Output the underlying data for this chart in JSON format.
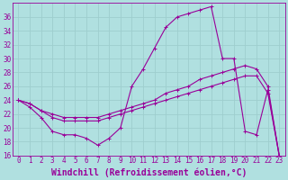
{
  "xlabel": "Windchill (Refroidissement éolien,°C)",
  "bg_color": "#b0e0e0",
  "line_color": "#990099",
  "grid_color": "#9ecece",
  "xlim": [
    -0.5,
    23.5
  ],
  "ylim": [
    16,
    38
  ],
  "yticks": [
    16,
    18,
    20,
    22,
    24,
    26,
    28,
    30,
    32,
    34,
    36
  ],
  "xticks": [
    0,
    1,
    2,
    3,
    4,
    5,
    6,
    7,
    8,
    9,
    10,
    11,
    12,
    13,
    14,
    15,
    16,
    17,
    18,
    19,
    20,
    21,
    22,
    23
  ],
  "line1_x": [
    0,
    1,
    2,
    3,
    4,
    5,
    6,
    7,
    8,
    9,
    10,
    11,
    12,
    13,
    14,
    15,
    16,
    17,
    18,
    19,
    20,
    21,
    22,
    23
  ],
  "line1_y": [
    24,
    23,
    21.5,
    19.5,
    19,
    19,
    18.5,
    17.5,
    18.5,
    20,
    26,
    28.5,
    31.5,
    34.5,
    36,
    36.5,
    37,
    37.5,
    30,
    30,
    19.5,
    19,
    25.5,
    16
  ],
  "line2_x": [
    0,
    1,
    2,
    3,
    4,
    5,
    6,
    7,
    8,
    9,
    10,
    11,
    12,
    13,
    14,
    15,
    16,
    17,
    18,
    19,
    20,
    21,
    22,
    23
  ],
  "line2_y": [
    24,
    23.5,
    22.5,
    22,
    21.5,
    21.5,
    21.5,
    21.5,
    22,
    22.5,
    23,
    23.5,
    24,
    25,
    25.5,
    26,
    27,
    27.5,
    28,
    28.5,
    29,
    28.5,
    26,
    16
  ],
  "line3_x": [
    0,
    1,
    2,
    3,
    4,
    5,
    6,
    7,
    8,
    9,
    10,
    11,
    12,
    13,
    14,
    15,
    16,
    17,
    18,
    19,
    20,
    21,
    22,
    23
  ],
  "line3_y": [
    24,
    23.5,
    22.5,
    21.5,
    21,
    21,
    21,
    21,
    21.5,
    22,
    22.5,
    23,
    23.5,
    24,
    24.5,
    25,
    25.5,
    26,
    26.5,
    27,
    27.5,
    27.5,
    25,
    16
  ],
  "tick_fontsize": 5.5,
  "xlabel_fontsize": 7.0,
  "marker_size": 2.5,
  "line_width": 0.8
}
